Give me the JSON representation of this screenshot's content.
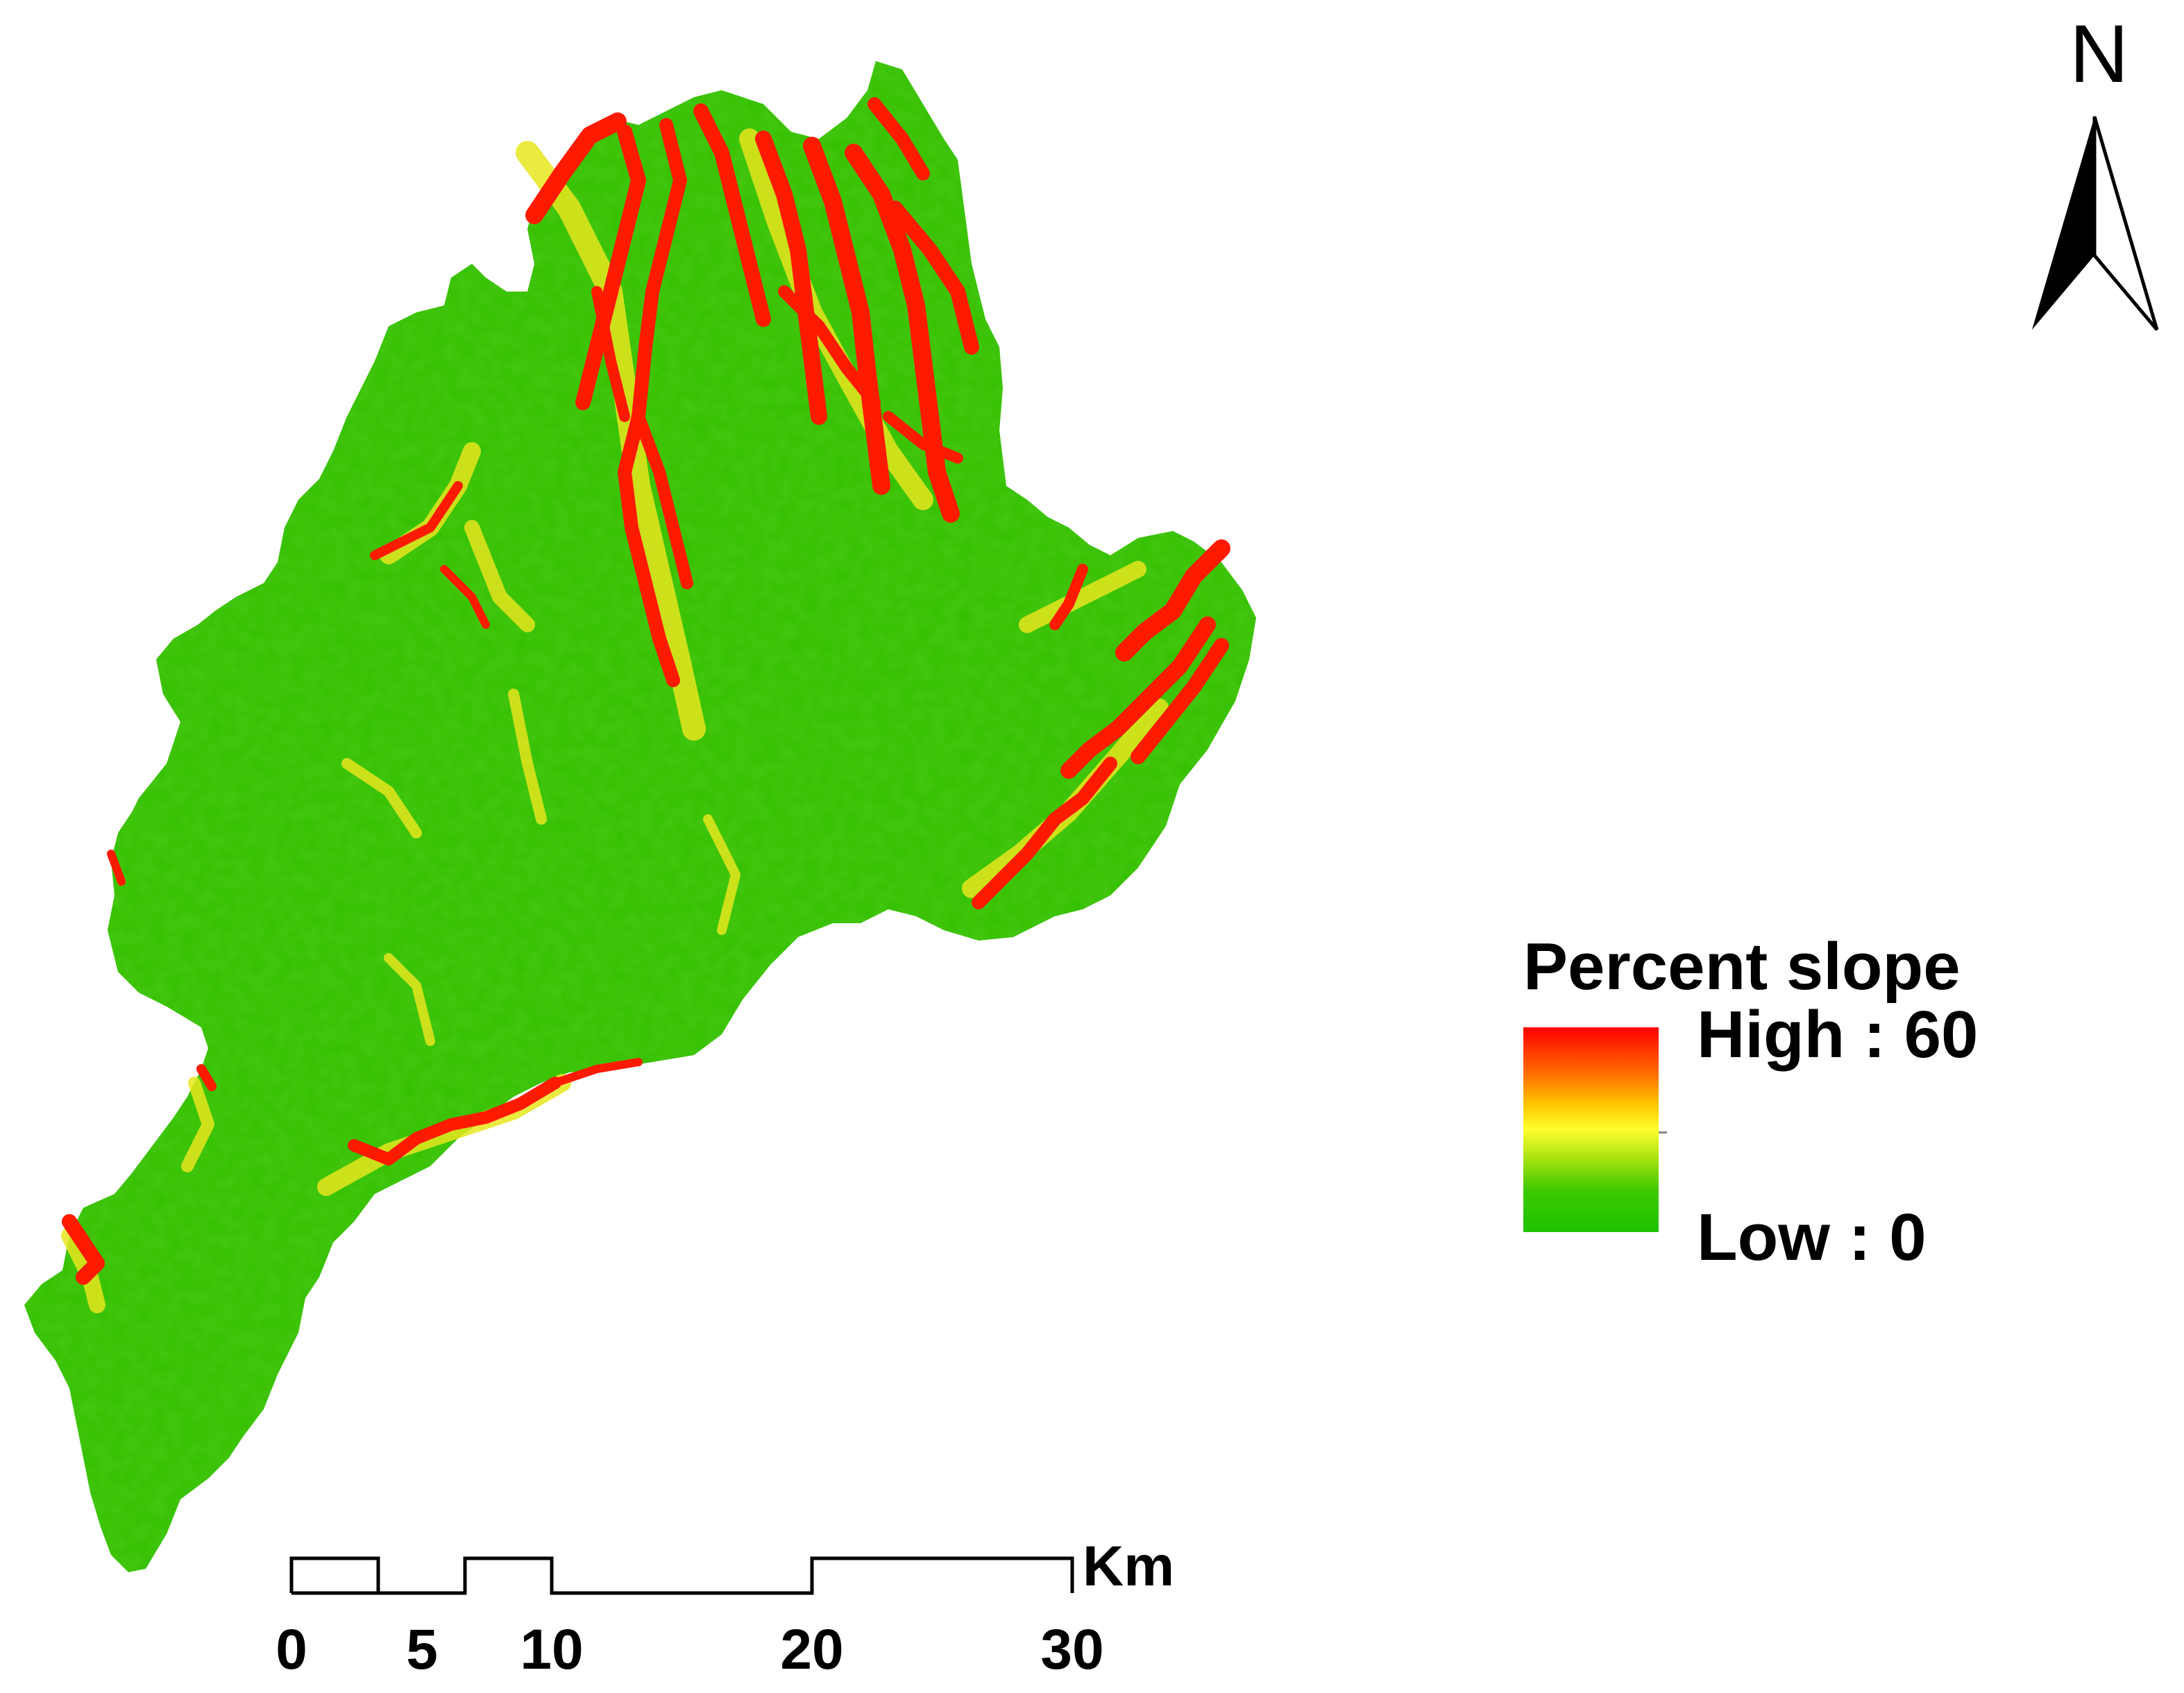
{
  "legend": {
    "title": "Percent slope",
    "high_label": "High : 60",
    "low_label": "Low : 0",
    "color_ramp": [
      "#ff0000",
      "#ff6a00",
      "#ffc800",
      "#ffff2d",
      "#b4e614",
      "#3cc800",
      "#1ec300"
    ]
  },
  "north_arrow": {
    "letter": "N",
    "icon": "north-arrow-icon"
  },
  "scale_bar": {
    "unit": "Km",
    "ticks": [
      "0",
      "5",
      "10",
      "20",
      "30"
    ]
  },
  "colors": {
    "terrain_low": "#2ebd00",
    "terrain_mid": "#e6e61e",
    "terrain_high": "#ff1a00"
  }
}
